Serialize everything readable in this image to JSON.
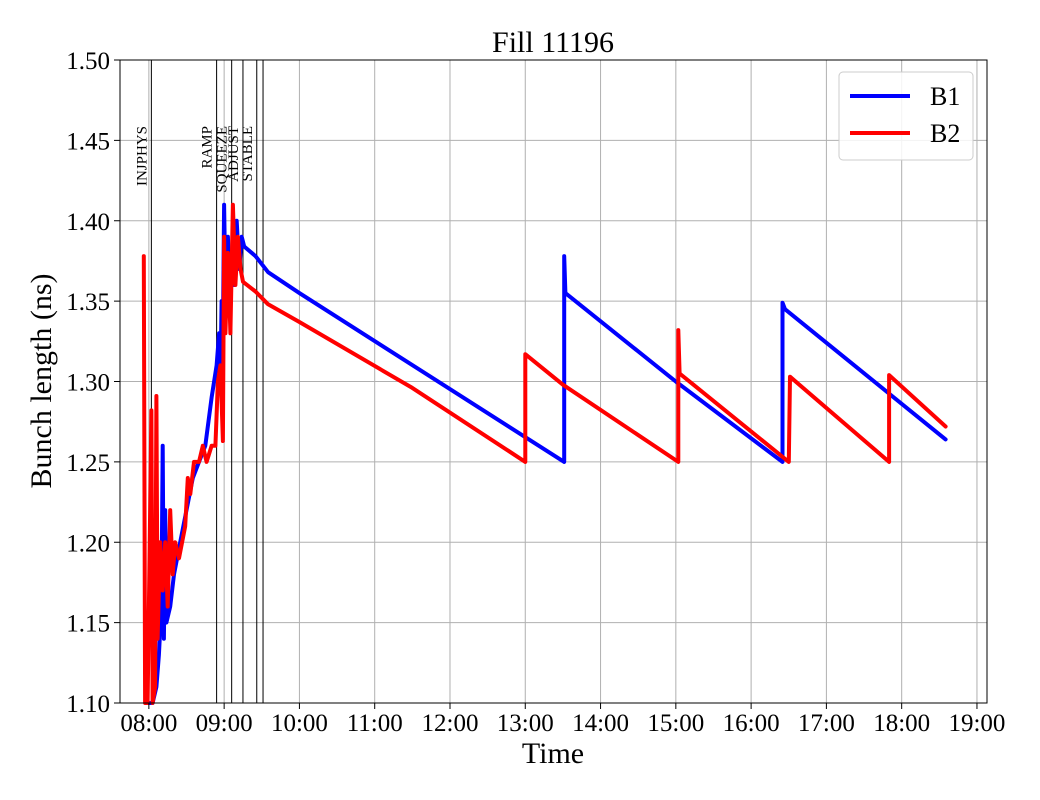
{
  "chart_data": {
    "type": "line",
    "title": "Fill 11196",
    "xlabel": "Time",
    "ylabel": "Bunch length (ns)",
    "xlim": [
      "07:37",
      "19:08"
    ],
    "ylim": [
      1.1,
      1.5
    ],
    "x_ticks": [
      "08:00",
      "09:00",
      "10:00",
      "11:00",
      "12:00",
      "13:00",
      "14:00",
      "15:00",
      "16:00",
      "17:00",
      "18:00",
      "19:00"
    ],
    "y_ticks": [
      "1.10",
      "1.15",
      "1.20",
      "1.25",
      "1.30",
      "1.35",
      "1.40",
      "1.45",
      "1.50"
    ],
    "grid": true,
    "legend_position": "top-right",
    "markers": [
      {
        "label": "INJPHYS",
        "time": "08:02"
      },
      {
        "label": "RAMP",
        "time": "08:54"
      },
      {
        "label": "SQUEEZE",
        "time": "09:06"
      },
      {
        "label": "ADJUST",
        "time": "09:15"
      },
      {
        "label": "STABLE",
        "time": "09:26"
      },
      {
        "label": "",
        "time": "09:31"
      }
    ],
    "series": [
      {
        "name": "B1",
        "color": "#0000ff",
        "points": [
          [
            "07:58",
            1.1
          ],
          [
            "08:03",
            1.1
          ],
          [
            "08:06",
            1.11
          ],
          [
            "08:08",
            1.13
          ],
          [
            "08:10",
            1.16
          ],
          [
            "08:11",
            1.26
          ],
          [
            "08:12",
            1.14
          ],
          [
            "08:13",
            1.22
          ],
          [
            "08:14",
            1.15
          ],
          [
            "08:17",
            1.16
          ],
          [
            "08:20",
            1.18
          ],
          [
            "08:25",
            1.2
          ],
          [
            "08:30",
            1.22
          ],
          [
            "08:35",
            1.24
          ],
          [
            "08:40",
            1.25
          ],
          [
            "08:45",
            1.26
          ],
          [
            "08:50",
            1.29
          ],
          [
            "08:54",
            1.31
          ],
          [
            "08:56",
            1.33
          ],
          [
            "08:57",
            1.3
          ],
          [
            "08:58",
            1.35
          ],
          [
            "08:59",
            1.33
          ],
          [
            "09:00",
            1.41
          ],
          [
            "09:01",
            1.36
          ],
          [
            "09:03",
            1.39
          ],
          [
            "09:05",
            1.35
          ],
          [
            "09:06",
            1.38
          ],
          [
            "09:08",
            1.36
          ],
          [
            "09:10",
            1.4
          ],
          [
            "09:12",
            1.37
          ],
          [
            "09:14",
            1.39
          ],
          [
            "09:16",
            1.384
          ],
          [
            "09:25",
            1.378
          ],
          [
            "09:35",
            1.368
          ],
          [
            "10:00",
            1.355
          ],
          [
            "13:31",
            1.25
          ],
          [
            "13:31",
            1.378
          ],
          [
            "13:32",
            1.355
          ],
          [
            "15:00",
            1.3
          ],
          [
            "16:25",
            1.25
          ],
          [
            "16:25",
            1.349
          ],
          [
            "16:27",
            1.345
          ],
          [
            "18:35",
            1.264
          ]
        ]
      },
      {
        "name": "B2",
        "color": "#ff0000",
        "points": [
          [
            "07:56",
            1.378
          ],
          [
            "07:57",
            1.1
          ],
          [
            "07:59",
            1.1
          ],
          [
            "08:00",
            1.16
          ],
          [
            "08:02",
            1.282
          ],
          [
            "08:03",
            1.1
          ],
          [
            "08:05",
            1.11
          ],
          [
            "08:06",
            1.291
          ],
          [
            "08:07",
            1.14
          ],
          [
            "08:09",
            1.2
          ],
          [
            "08:11",
            1.17
          ],
          [
            "08:13",
            1.2
          ],
          [
            "08:15",
            1.16
          ],
          [
            "08:17",
            1.22
          ],
          [
            "08:19",
            1.18
          ],
          [
            "08:21",
            1.2
          ],
          [
            "08:24",
            1.19
          ],
          [
            "08:29",
            1.21
          ],
          [
            "08:31",
            1.24
          ],
          [
            "08:33",
            1.23
          ],
          [
            "08:36",
            1.25
          ],
          [
            "08:40",
            1.25
          ],
          [
            "08:43",
            1.26
          ],
          [
            "08:46",
            1.25
          ],
          [
            "08:50",
            1.26
          ],
          [
            "08:53",
            1.26
          ],
          [
            "08:55",
            1.3
          ],
          [
            "08:57",
            1.31
          ],
          [
            "08:59",
            1.263
          ],
          [
            "09:00",
            1.39
          ],
          [
            "09:01",
            1.33
          ],
          [
            "09:03",
            1.38
          ],
          [
            "09:05",
            1.33
          ],
          [
            "09:07",
            1.41
          ],
          [
            "09:09",
            1.36
          ],
          [
            "09:11",
            1.39
          ],
          [
            "09:13",
            1.37
          ],
          [
            "09:15",
            1.362
          ],
          [
            "09:25",
            1.356
          ],
          [
            "09:35",
            1.348
          ],
          [
            "10:00",
            1.337
          ],
          [
            "11:30",
            1.296
          ],
          [
            "13:00",
            1.25
          ],
          [
            "13:00",
            1.317
          ],
          [
            "13:30",
            1.298
          ],
          [
            "15:02",
            1.25
          ],
          [
            "15:02",
            1.332
          ],
          [
            "15:03",
            1.305
          ],
          [
            "16:30",
            1.25
          ],
          [
            "16:31",
            1.303
          ],
          [
            "17:50",
            1.25
          ],
          [
            "17:50",
            1.304
          ],
          [
            "18:35",
            1.272
          ]
        ]
      }
    ]
  }
}
